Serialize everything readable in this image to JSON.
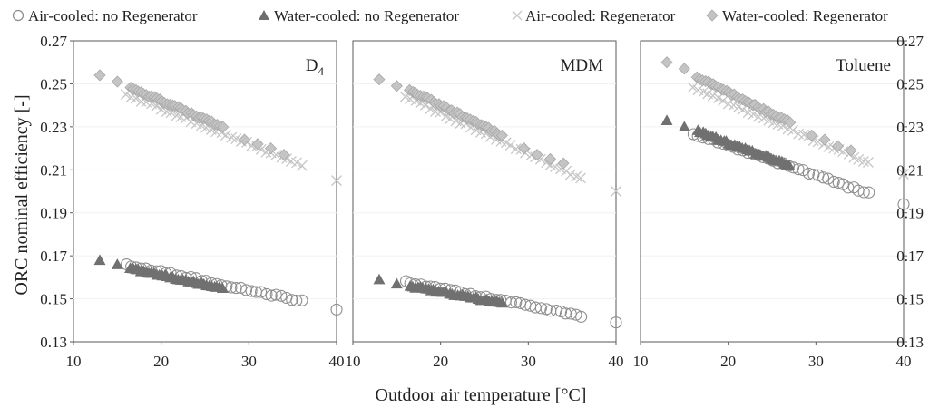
{
  "chart_data": {
    "type": "scatter",
    "legend": {
      "placement": "top",
      "entries": [
        {
          "name": "Air-cooled: no Regenerator",
          "marker": "circle-open"
        },
        {
          "name": "Water-cooled: no Regenerator",
          "marker": "triangle-filled"
        },
        {
          "name": "Air-cooled: Regenerator",
          "marker": "cross"
        },
        {
          "name": "Water-cooled: Regenerator",
          "marker": "diamond-filled"
        }
      ]
    },
    "xlabel": "Outdoor air temperature [°C]",
    "ylabel": "ORC nominal efficiency [-]",
    "xlim": [
      10,
      40
    ],
    "ylim": [
      0.13,
      0.27
    ],
    "xticks": [
      "10",
      "20",
      "30",
      "40"
    ],
    "yticks": [
      "0.27",
      "0.25",
      "0.23",
      "0.21",
      "0.19",
      "0.17",
      "0.15",
      "0.13"
    ],
    "grid": false,
    "panels": [
      {
        "label_main": "D",
        "label_sub": "4",
        "series": [
          {
            "name": "Air-cooled: no Regenerator",
            "trend": [
              [
                16,
                0.166
              ],
              [
                36,
                0.149
              ]
            ],
            "extra": [
              [
                40,
                0.145
              ]
            ]
          },
          {
            "name": "Water-cooled: no Regenerator",
            "trend": [
              [
                16.5,
                0.164
              ],
              [
                27,
                0.155
              ]
            ],
            "extra": [
              [
                13,
                0.168
              ],
              [
                15,
                0.166
              ]
            ]
          },
          {
            "name": "Air-cooled: Regenerator",
            "trend": [
              [
                16,
                0.245
              ],
              [
                36,
                0.212
              ]
            ],
            "extra": [
              [
                40,
                0.205
              ]
            ]
          },
          {
            "name": "Water-cooled: Regenerator",
            "trend": [
              [
                16.5,
                0.248
              ],
              [
                27,
                0.23
              ]
            ],
            "extra": [
              [
                13,
                0.254
              ],
              [
                15,
                0.251
              ],
              [
                29.5,
                0.224
              ],
              [
                31,
                0.222
              ],
              [
                32.5,
                0.22
              ],
              [
                34,
                0.217
              ]
            ]
          }
        ]
      },
      {
        "label_main": "MDM",
        "label_sub": "",
        "series": [
          {
            "name": "Air-cooled: no Regenerator",
            "trend": [
              [
                16,
                0.158
              ],
              [
                36,
                0.142
              ]
            ],
            "extra": [
              [
                40,
                0.139
              ]
            ]
          },
          {
            "name": "Water-cooled: no Regenerator",
            "trend": [
              [
                16.5,
                0.156
              ],
              [
                27,
                0.148
              ]
            ],
            "extra": [
              [
                13,
                0.159
              ],
              [
                15,
                0.157
              ]
            ]
          },
          {
            "name": "Air-cooled: Regenerator",
            "trend": [
              [
                16,
                0.244
              ],
              [
                36,
                0.206
              ]
            ],
            "extra": [
              [
                40,
                0.2
              ]
            ]
          },
          {
            "name": "Water-cooled: Regenerator",
            "trend": [
              [
                16.5,
                0.247
              ],
              [
                27,
                0.226
              ]
            ],
            "extra": [
              [
                13,
                0.252
              ],
              [
                15,
                0.249
              ],
              [
                29.5,
                0.22
              ],
              [
                31,
                0.217
              ],
              [
                32.5,
                0.215
              ],
              [
                34,
                0.213
              ]
            ]
          }
        ]
      },
      {
        "label_main": "Toluene",
        "label_sub": "",
        "series": [
          {
            "name": "Air-cooled: no Regenerator",
            "trend": [
              [
                16,
                0.227
              ],
              [
                36,
                0.199
              ]
            ],
            "extra": [
              [
                40,
                0.194
              ]
            ]
          },
          {
            "name": "Water-cooled: no Regenerator",
            "trend": [
              [
                16.5,
                0.228
              ],
              [
                27,
                0.212
              ]
            ],
            "extra": [
              [
                13,
                0.233
              ],
              [
                15,
                0.23
              ]
            ]
          },
          {
            "name": "Air-cooled: Regenerator",
            "trend": [
              [
                16,
                0.248
              ],
              [
                36,
                0.213
              ]
            ],
            "extra": [
              [
                40,
                0.208
              ]
            ]
          },
          {
            "name": "Water-cooled: Regenerator",
            "trend": [
              [
                16.5,
                0.253
              ],
              [
                27,
                0.232
              ]
            ],
            "extra": [
              [
                13,
                0.26
              ],
              [
                15,
                0.257
              ],
              [
                29.5,
                0.226
              ],
              [
                31,
                0.224
              ],
              [
                32.5,
                0.221
              ],
              [
                34,
                0.219
              ]
            ]
          }
        ]
      }
    ]
  }
}
